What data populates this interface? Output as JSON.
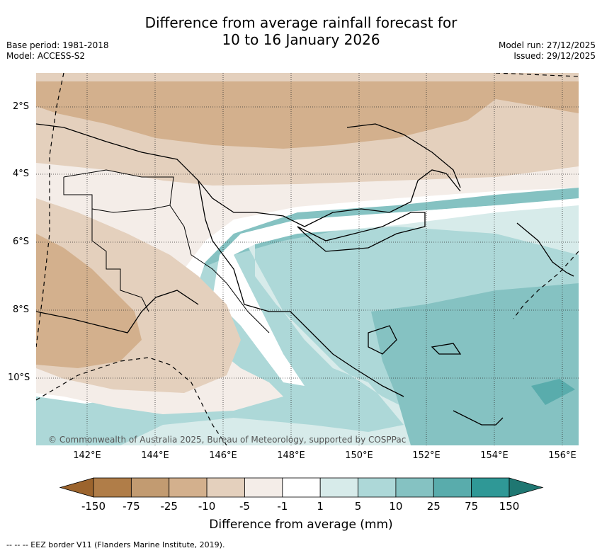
{
  "title": {
    "line1": "Difference from average rainfall forecast for",
    "line2": "10 to 16 January 2026"
  },
  "meta": {
    "base_period": "Base period: 1981-2018",
    "model": "Model: ACCESS-S2",
    "model_run": "Model run: 27/12/2025",
    "issued": "Issued: 29/12/2025"
  },
  "axes": {
    "lat_labels": [
      "2°S",
      "4°S",
      "6°S",
      "8°S",
      "10°S"
    ],
    "lon_labels": [
      "142°E",
      "144°E",
      "146°E",
      "148°E",
      "150°E",
      "152°E",
      "154°E",
      "156°E"
    ]
  },
  "credit": "© Commonwealth of Australia 2025, Bureau of Meteorology, supported by COSPPac",
  "colorbar": {
    "ticks": [
      "-150",
      "-75",
      "-25",
      "-10",
      "-5",
      "-1",
      "1",
      "5",
      "10",
      "25",
      "75",
      "150"
    ],
    "colors": [
      "#9c642d",
      "#b07d48",
      "#c29b71",
      "#d3b08d",
      "#e4d0bd",
      "#f4ede8",
      "#ffffff",
      "#d7ebea",
      "#add8d8",
      "#85c2c2",
      "#59acac",
      "#2f9896",
      "#1f7772"
    ],
    "label": "Difference from average (mm)"
  },
  "footnote": "--  --  -- EEZ border V11 (Flanders Marine Institute, 2019)."
}
